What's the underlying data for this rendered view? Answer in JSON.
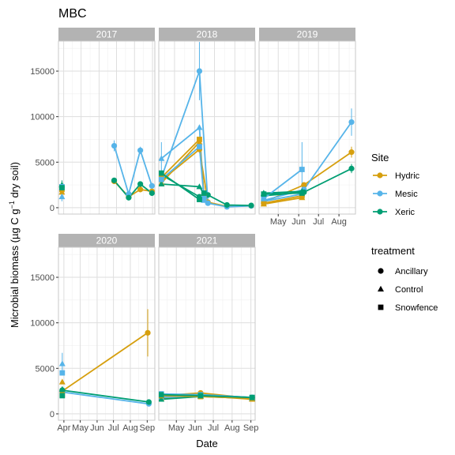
{
  "chart_data": {
    "type": "line",
    "title": "MBC",
    "xlabel": "Date",
    "ylabel": "Microbial biomass (µg C g⁻¹ dry soil)",
    "ylabel_parts": {
      "pre": "Microbial biomass (µg C g",
      "sup": "−1",
      "post": " dry soil)"
    },
    "ylim": [
      -700,
      18300
    ],
    "yticks": [
      0,
      5000,
      10000,
      15000
    ],
    "ytick_labels": [
      "0",
      "5000",
      "10000",
      "15000"
    ],
    "month_ticks": [
      "Apr",
      "May",
      "Jun",
      "Jul",
      "Aug",
      "Sep"
    ],
    "grid": true,
    "legend": {
      "placement": "right",
      "site_title": "Site",
      "sites": [
        {
          "name": "Hydric",
          "color": "#D69F0E"
        },
        {
          "name": "Mesic",
          "color": "#56B4E9"
        },
        {
          "name": "Xeric",
          "color": "#009E73"
        }
      ],
      "treatment_title": "treatment",
      "treatments": [
        {
          "name": "Ancillary",
          "shape": "circle"
        },
        {
          "name": "Control",
          "shape": "triangle"
        },
        {
          "name": "Snowfence",
          "shape": "square"
        }
      ]
    },
    "panels": [
      {
        "year": "2017",
        "xlim": [
          82,
          248
        ],
        "month_tick_days": [
          91,
          121,
          152,
          182,
          213,
          244
        ],
        "month_tick_labels": [
          "Apr",
          "May",
          "Jun",
          "Jul",
          "Aug",
          "Sep"
        ],
        "series": [
          {
            "site": "Hydric",
            "treatment": "Ancillary",
            "points": [
              {
                "x": 178,
                "y": 2900
              },
              {
                "x": 203,
                "y": 1200
              },
              {
                "x": 223,
                "y": 2000
              },
              {
                "x": 243,
                "y": 1800
              }
            ]
          },
          {
            "site": "Mesic",
            "treatment": "Ancillary",
            "points": [
              {
                "x": 178,
                "y": 6800,
                "err": 600
              },
              {
                "x": 203,
                "y": 1500
              },
              {
                "x": 223,
                "y": 6300,
                "err": 400
              },
              {
                "x": 243,
                "y": 2400
              }
            ]
          },
          {
            "site": "Xeric",
            "treatment": "Ancillary",
            "points": [
              {
                "x": 178,
                "y": 3000
              },
              {
                "x": 203,
                "y": 1100
              },
              {
                "x": 223,
                "y": 2600
              },
              {
                "x": 243,
                "y": 1600
              }
            ]
          },
          {
            "site": "Hydric",
            "treatment": "Control",
            "points": [
              {
                "x": 88,
                "y": 1700
              }
            ]
          },
          {
            "site": "Mesic",
            "treatment": "Control",
            "points": [
              {
                "x": 88,
                "y": 1200,
                "err": 500
              }
            ]
          },
          {
            "site": "Xeric",
            "treatment": "Control",
            "points": [
              {
                "x": 88,
                "y": 2500,
                "err": 500
              }
            ]
          },
          {
            "site": "Hydric",
            "treatment": "Snowfence",
            "points": [
              {
                "x": 88,
                "y": 2000
              }
            ]
          },
          {
            "site": "Mesic",
            "treatment": "Snowfence",
            "points": [
              {
                "x": 88,
                "y": 2300
              }
            ]
          },
          {
            "site": "Xeric",
            "treatment": "Snowfence",
            "points": [
              {
                "x": 88,
                "y": 2200
              }
            ]
          }
        ]
      },
      {
        "year": "2018",
        "xlim": [
          97,
          244
        ],
        "month_tick_days": [
          91,
          121,
          152,
          182,
          213,
          244
        ],
        "month_tick_labels": [
          "Apr",
          "May",
          "Jun",
          "Jul",
          "Aug",
          "Sep"
        ],
        "series": [
          {
            "site": "Hydric",
            "treatment": "Ancillary",
            "points": [
              {
                "x": 101,
                "y": 3000
              },
              {
                "x": 159,
                "y": 6400
              },
              {
                "x": 172,
                "y": 600
              },
              {
                "x": 201,
                "y": 150
              },
              {
                "x": 238,
                "y": 200
              }
            ]
          },
          {
            "site": "Mesic",
            "treatment": "Ancillary",
            "points": [
              {
                "x": 101,
                "y": 3300
              },
              {
                "x": 159,
                "y": 15000,
                "err": 3200
              },
              {
                "x": 172,
                "y": 500
              },
              {
                "x": 201,
                "y": 100
              },
              {
                "x": 238,
                "y": 200
              }
            ]
          },
          {
            "site": "Xeric",
            "treatment": "Ancillary",
            "points": [
              {
                "x": 101,
                "y": 3600
              },
              {
                "x": 159,
                "y": 1200
              },
              {
                "x": 172,
                "y": 1400
              },
              {
                "x": 201,
                "y": 300
              },
              {
                "x": 238,
                "y": 250
              }
            ]
          },
          {
            "site": "Hydric",
            "treatment": "Control",
            "points": [
              {
                "x": 101,
                "y": 2700
              },
              {
                "x": 159,
                "y": 7200
              },
              {
                "x": 166,
                "y": 1200
              }
            ]
          },
          {
            "site": "Mesic",
            "treatment": "Control",
            "points": [
              {
                "x": 101,
                "y": 5400,
                "err": 1800
              },
              {
                "x": 159,
                "y": 8800
              },
              {
                "x": 166,
                "y": 800
              }
            ]
          },
          {
            "site": "Xeric",
            "treatment": "Control",
            "points": [
              {
                "x": 101,
                "y": 2600
              },
              {
                "x": 159,
                "y": 2300
              },
              {
                "x": 166,
                "y": 1500
              }
            ]
          },
          {
            "site": "Hydric",
            "treatment": "Snowfence",
            "points": [
              {
                "x": 101,
                "y": 3300
              },
              {
                "x": 159,
                "y": 7500
              },
              {
                "x": 166,
                "y": 1300
              }
            ]
          },
          {
            "site": "Mesic",
            "treatment": "Snowfence",
            "points": [
              {
                "x": 101,
                "y": 3100
              },
              {
                "x": 159,
                "y": 6700
              },
              {
                "x": 166,
                "y": 1000
              }
            ]
          },
          {
            "site": "Xeric",
            "treatment": "Snowfence",
            "points": [
              {
                "x": 101,
                "y": 3800
              },
              {
                "x": 159,
                "y": 900
              },
              {
                "x": 166,
                "y": 1600
              }
            ]
          }
        ]
      },
      {
        "year": "2019",
        "xlim": [
          92,
          238
        ],
        "month_tick_days": [
          91,
          121,
          152,
          182,
          213,
          244
        ],
        "month_tick_labels": [
          "Apr",
          "May",
          "Jun",
          "Jul",
          "Aug",
          "Sep"
        ],
        "series": [
          {
            "site": "Hydric",
            "treatment": "Ancillary",
            "points": [
              {
                "x": 99,
                "y": 600
              },
              {
                "x": 160,
                "y": 2500
              },
              {
                "x": 232,
                "y": 6100,
                "err": 600
              }
            ]
          },
          {
            "site": "Mesic",
            "treatment": "Ancillary",
            "points": [
              {
                "x": 99,
                "y": 800
              },
              {
                "x": 160,
                "y": 2000
              },
              {
                "x": 232,
                "y": 9400,
                "err": 1500
              }
            ]
          },
          {
            "site": "Xeric",
            "treatment": "Ancillary",
            "points": [
              {
                "x": 99,
                "y": 1300
              },
              {
                "x": 160,
                "y": 1700
              },
              {
                "x": 232,
                "y": 4300,
                "err": 500
              }
            ]
          },
          {
            "site": "Hydric",
            "treatment": "Control",
            "points": [
              {
                "x": 99,
                "y": 400
              },
              {
                "x": 157,
                "y": 1100
              }
            ]
          },
          {
            "site": "Mesic",
            "treatment": "Control",
            "points": [
              {
                "x": 99,
                "y": 700
              },
              {
                "x": 157,
                "y": 1500
              }
            ]
          },
          {
            "site": "Xeric",
            "treatment": "Control",
            "points": [
              {
                "x": 99,
                "y": 1600
              },
              {
                "x": 157,
                "y": 1800
              }
            ]
          },
          {
            "site": "Hydric",
            "treatment": "Snowfence",
            "points": [
              {
                "x": 99,
                "y": 500
              },
              {
                "x": 157,
                "y": 1300
              }
            ]
          },
          {
            "site": "Mesic",
            "treatment": "Snowfence",
            "points": [
              {
                "x": 99,
                "y": 1000
              },
              {
                "x": 157,
                "y": 4200,
                "err": 3000
              }
            ]
          },
          {
            "site": "Xeric",
            "treatment": "Snowfence",
            "points": [
              {
                "x": 99,
                "y": 1500
              },
              {
                "x": 157,
                "y": 1600
              }
            ]
          }
        ]
      },
      {
        "year": "2020",
        "xlim": [
          81,
          258
        ],
        "month_tick_days": [
          91,
          121,
          152,
          182,
          213,
          244
        ],
        "month_tick_labels": [
          "Apr",
          "May",
          "Jun",
          "Jul",
          "Aug",
          "Sep"
        ],
        "series": [
          {
            "site": "Hydric",
            "treatment": "Ancillary",
            "points": [
              {
                "x": 88,
                "y": 2500
              },
              {
                "x": 245,
                "y": 8900,
                "err": 2600
              }
            ]
          },
          {
            "site": "Mesic",
            "treatment": "Ancillary",
            "points": [
              {
                "x": 88,
                "y": 2400
              },
              {
                "x": 247,
                "y": 1100
              }
            ]
          },
          {
            "site": "Xeric",
            "treatment": "Ancillary",
            "points": [
              {
                "x": 88,
                "y": 2600
              },
              {
                "x": 247,
                "y": 1300
              }
            ]
          },
          {
            "site": "Hydric",
            "treatment": "Control",
            "points": [
              {
                "x": 88,
                "y": 3500
              }
            ]
          },
          {
            "site": "Mesic",
            "treatment": "Control",
            "points": [
              {
                "x": 88,
                "y": 5500,
                "err": 1200
              }
            ]
          },
          {
            "site": "Xeric",
            "treatment": "Control",
            "points": [
              {
                "x": 88,
                "y": 2700
              }
            ]
          },
          {
            "site": "Hydric",
            "treatment": "Snowfence",
            "points": [
              {
                "x": 88,
                "y": 2100
              }
            ]
          },
          {
            "site": "Mesic",
            "treatment": "Snowfence",
            "points": [
              {
                "x": 88,
                "y": 4500
              }
            ]
          },
          {
            "site": "Xeric",
            "treatment": "Snowfence",
            "points": [
              {
                "x": 88,
                "y": 2000
              }
            ]
          }
        ]
      },
      {
        "year": "2021",
        "xlim": [
          92,
          251
        ],
        "month_tick_days": [
          91,
          121,
          152,
          182,
          213,
          244
        ],
        "month_tick_labels": [
          "Apr",
          "May",
          "Jun",
          "Jul",
          "Aug",
          "Sep"
        ],
        "series": [
          {
            "site": "Hydric",
            "treatment": "Ancillary",
            "points": [
              {
                "x": 96,
                "y": 2000
              },
              {
                "x": 161,
                "y": 2300
              },
              {
                "x": 246,
                "y": 1700
              }
            ]
          },
          {
            "site": "Mesic",
            "treatment": "Ancillary",
            "points": [
              {
                "x": 96,
                "y": 1900
              },
              {
                "x": 161,
                "y": 2000
              },
              {
                "x": 246,
                "y": 1800
              }
            ]
          },
          {
            "site": "Xeric",
            "treatment": "Ancillary",
            "points": [
              {
                "x": 96,
                "y": 1800
              },
              {
                "x": 161,
                "y": 2100
              },
              {
                "x": 246,
                "y": 1800
              }
            ]
          },
          {
            "site": "Hydric",
            "treatment": "Control",
            "points": [
              {
                "x": 96,
                "y": 1700
              },
              {
                "x": 161,
                "y": 2000
              },
              {
                "x": 246,
                "y": 1600
              }
            ]
          },
          {
            "site": "Mesic",
            "treatment": "Control",
            "points": [
              {
                "x": 96,
                "y": 1800
              },
              {
                "x": 161,
                "y": 2000
              },
              {
                "x": 246,
                "y": 1700
              }
            ]
          },
          {
            "site": "Xeric",
            "treatment": "Control",
            "points": [
              {
                "x": 96,
                "y": 1600
              },
              {
                "x": 161,
                "y": 1900
              },
              {
                "x": 246,
                "y": 1700
              }
            ]
          },
          {
            "site": "Hydric",
            "treatment": "Snowfence",
            "points": [
              {
                "x": 96,
                "y": 2000
              },
              {
                "x": 161,
                "y": 1900
              },
              {
                "x": 246,
                "y": 1700
              }
            ]
          },
          {
            "site": "Mesic",
            "treatment": "Snowfence",
            "points": [
              {
                "x": 96,
                "y": 2200
              },
              {
                "x": 161,
                "y": 2100
              },
              {
                "x": 246,
                "y": 1800
              }
            ]
          },
          {
            "site": "Xeric",
            "treatment": "Snowfence",
            "points": [
              {
                "x": 96,
                "y": 2100
              },
              {
                "x": 161,
                "y": 2000
              },
              {
                "x": 246,
                "y": 1800
              }
            ]
          }
        ]
      }
    ]
  }
}
